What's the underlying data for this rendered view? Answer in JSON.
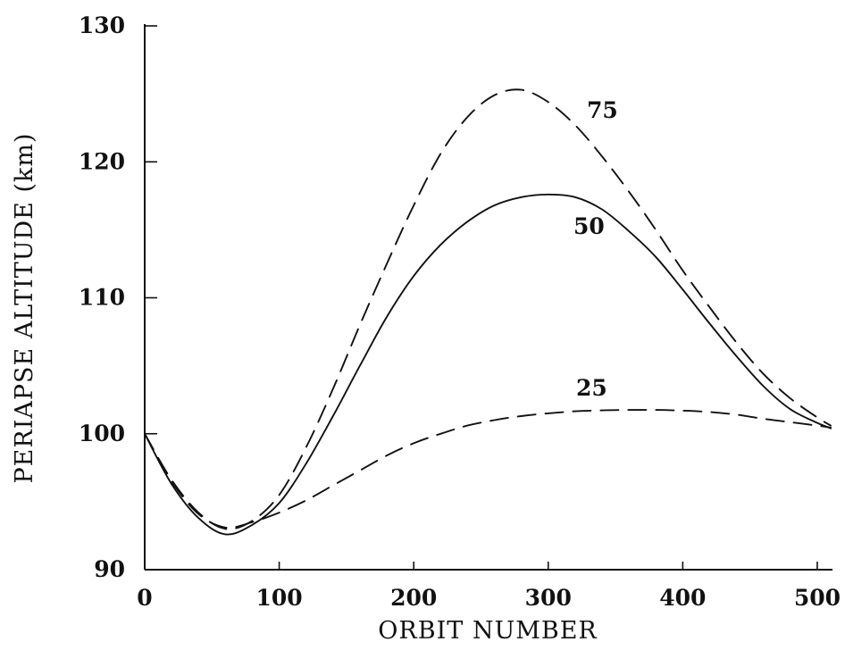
{
  "chart_data": {
    "type": "line",
    "xlabel": "ORBIT NUMBER",
    "ylabel": "PERIAPSE ALTITUDE (km)",
    "xlim": [
      0,
      510
    ],
    "ylim": [
      90,
      130
    ],
    "xticks": [
      0,
      100,
      200,
      300,
      400,
      500
    ],
    "yticks": [
      90,
      100,
      110,
      120,
      130
    ],
    "xtick_labels": [
      "0",
      "100",
      "200",
      "300",
      "400",
      "500"
    ],
    "ytick_labels": [
      "90",
      "100",
      "110",
      "120",
      "130"
    ],
    "grid": false,
    "legend": "none",
    "series": [
      {
        "name": "75",
        "style": "dashed",
        "x": [
          0,
          20,
          40,
          60,
          80,
          100,
          120,
          140,
          160,
          180,
          200,
          220,
          240,
          260,
          280,
          300,
          320,
          340,
          360,
          380,
          400,
          420,
          440,
          460,
          480,
          500,
          510
        ],
        "y": [
          100.0,
          96.6,
          94.2,
          93.0,
          93.6,
          95.5,
          99.0,
          103.3,
          108.0,
          112.5,
          116.8,
          120.6,
          123.3,
          124.9,
          125.3,
          124.4,
          122.7,
          120.4,
          117.8,
          115.0,
          112.0,
          109.3,
          106.7,
          104.4,
          102.6,
          101.2,
          100.6
        ]
      },
      {
        "name": "50",
        "style": "solid",
        "x": [
          0,
          20,
          40,
          60,
          80,
          100,
          120,
          140,
          160,
          180,
          200,
          220,
          240,
          260,
          280,
          300,
          320,
          340,
          360,
          380,
          400,
          420,
          440,
          460,
          480,
          500,
          510
        ],
        "y": [
          100.0,
          96.3,
          93.8,
          92.6,
          93.3,
          94.9,
          97.8,
          101.3,
          105.0,
          108.6,
          111.6,
          113.9,
          115.6,
          116.8,
          117.4,
          117.6,
          117.4,
          116.5,
          114.9,
          113.0,
          110.6,
          108.1,
          105.7,
          103.5,
          101.8,
          100.8,
          100.4
        ]
      },
      {
        "name": "25",
        "style": "dashed",
        "x": [
          0,
          20,
          40,
          60,
          80,
          100,
          120,
          140,
          160,
          180,
          200,
          220,
          240,
          260,
          280,
          300,
          320,
          340,
          360,
          380,
          400,
          420,
          440,
          460,
          480,
          500,
          510
        ],
        "y": [
          100.0,
          96.5,
          94.1,
          93.1,
          93.5,
          94.2,
          95.1,
          96.2,
          97.3,
          98.4,
          99.3,
          100.0,
          100.6,
          101.0,
          101.3,
          101.5,
          101.65,
          101.72,
          101.75,
          101.75,
          101.7,
          101.6,
          101.4,
          101.1,
          100.85,
          100.6,
          100.45
        ]
      }
    ]
  }
}
